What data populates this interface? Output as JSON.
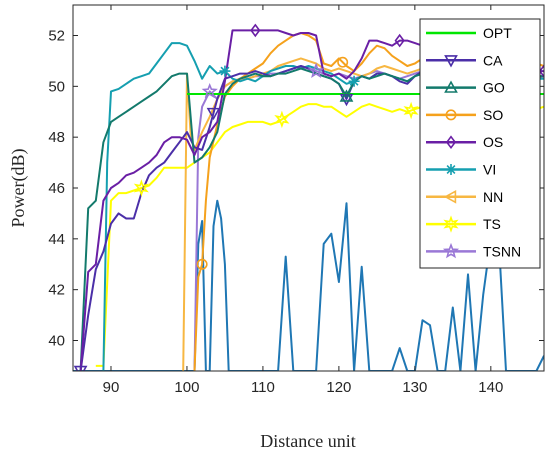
{
  "chart_data": {
    "type": "line",
    "title": "",
    "xlabel": "Distance unit",
    "ylabel": "Power(dB)",
    "xlim": [
      85,
      147
    ],
    "ylim": [
      38.8,
      53.2
    ],
    "xticks": [
      90,
      100,
      110,
      120,
      130,
      140
    ],
    "yticks": [
      40,
      42,
      44,
      46,
      48,
      50,
      52
    ],
    "grid": false,
    "legend_position": "top-right",
    "baseline": {
      "name": "",
      "color": "#1f77b4",
      "x": [
        85,
        101,
        101.5,
        102,
        102.5,
        103,
        103.5,
        104,
        104.5,
        105,
        105.5,
        106,
        107,
        108,
        109,
        110,
        111,
        112,
        113,
        114,
        115,
        116,
        117,
        118,
        119,
        120,
        121,
        122,
        123,
        124,
        125,
        126,
        127,
        128,
        129,
        130,
        131,
        132,
        133,
        134,
        135,
        136,
        137,
        138,
        139,
        140,
        141,
        142,
        143,
        144,
        145,
        146,
        147
      ],
      "y": [
        38.8,
        38.8,
        43.8,
        44.7,
        38.8,
        38.8,
        44.5,
        45.5,
        44.8,
        43.0,
        38.8,
        38.8,
        38.8,
        38.8,
        38.8,
        38.8,
        38.8,
        38.8,
        43.3,
        38.8,
        38.8,
        38.8,
        38.8,
        43.8,
        44.2,
        42.3,
        45.4,
        38.8,
        42.9,
        38.8,
        38.8,
        38.8,
        38.8,
        39.7,
        38.8,
        38.8,
        40.8,
        40.6,
        38.8,
        38.8,
        41.3,
        38.8,
        42.6,
        38.8,
        41.8,
        44.0,
        44.2,
        38.8,
        38.8,
        38.8,
        38.8,
        38.8,
        39.4
      ]
    },
    "series": [
      {
        "name": "OPT",
        "color": "#00e600",
        "marker": "none",
        "x": [
          100,
          147
        ],
        "y": [
          49.7,
          49.7
        ]
      },
      {
        "name": "CA",
        "color": "#4b2fa8",
        "marker": "triangle-down",
        "marker_x": [
          86,
          103.5,
          121
        ],
        "x": [
          86,
          87,
          88,
          89,
          90,
          91,
          92,
          93,
          94,
          95,
          96,
          97,
          98,
          99,
          100,
          101,
          102,
          103,
          104,
          105,
          106,
          107,
          108,
          109,
          110,
          111,
          112,
          113,
          114,
          115,
          116,
          117,
          118,
          119,
          120,
          121,
          122,
          123,
          124,
          125,
          126,
          127,
          128,
          129,
          130,
          131,
          132,
          133,
          134,
          135,
          136,
          137,
          138,
          139,
          140,
          141,
          142,
          143,
          144,
          145,
          146,
          147
        ],
        "y": [
          38.8,
          41.0,
          42.8,
          43.5,
          44.6,
          45.0,
          44.8,
          44.8,
          45.8,
          46.5,
          46.8,
          47.0,
          47.4,
          47.8,
          48.2,
          47.6,
          47.5,
          48.4,
          49.5,
          50.3,
          50.4,
          50.5,
          50.5,
          50.6,
          50.5,
          50.4,
          50.5,
          50.6,
          50.7,
          50.8,
          50.7,
          50.5,
          50.4,
          50.3,
          50.1,
          49.5,
          50.2,
          50.4,
          50.3,
          50.5,
          50.5,
          50.4,
          50.2,
          50.1,
          50.4,
          50.6,
          50.5,
          50.4,
          50.3,
          50.4,
          50.5,
          50.5,
          50.4,
          50.3,
          50.4,
          50.5,
          50.4,
          50.5,
          50.6,
          50.5,
          50.4,
          50.4
        ]
      },
      {
        "name": "GO",
        "color": "#137a6c",
        "marker": "triangle-up",
        "marker_x": [
          121
        ],
        "x": [
          86,
          87,
          88,
          89,
          90,
          91,
          92,
          93,
          94,
          95,
          96,
          97,
          98,
          99,
          100,
          101,
          102,
          103,
          104,
          105,
          106,
          107,
          108,
          109,
          110,
          111,
          112,
          113,
          114,
          115,
          116,
          117,
          118,
          119,
          120,
          121,
          122,
          123,
          124,
          125,
          126,
          127,
          128,
          129,
          130,
          131,
          132,
          133,
          134,
          135,
          136,
          137,
          138,
          139,
          140,
          141,
          142,
          143,
          144,
          145,
          146,
          147
        ],
        "y": [
          38.8,
          45.2,
          45.5,
          47.8,
          48.6,
          48.8,
          49.0,
          49.2,
          49.4,
          49.6,
          49.8,
          50.1,
          50.4,
          50.5,
          50.5,
          47.0,
          47.2,
          47.6,
          48.2,
          49.7,
          50.1,
          50.3,
          50.4,
          50.5,
          50.4,
          50.4,
          50.5,
          50.5,
          50.6,
          50.7,
          50.6,
          50.5,
          50.4,
          50.3,
          50.1,
          49.6,
          50.2,
          50.4,
          50.3,
          50.4,
          50.5,
          50.4,
          50.3,
          50.2,
          50.4,
          50.5,
          50.5,
          50.4,
          50.3,
          50.4,
          50.5,
          50.4,
          50.4,
          50.3,
          50.4,
          50.5,
          50.4,
          50.5,
          50.5,
          50.5,
          50.4,
          50.4
        ]
      },
      {
        "name": "SO",
        "color": "#f5a11c",
        "marker": "circle",
        "marker_x": [
          102,
          120.5,
          144
        ],
        "x": [
          101,
          101.5,
          102,
          102.5,
          103,
          104,
          105,
          106,
          107,
          108,
          109,
          110,
          111,
          112,
          113,
          114,
          115,
          116,
          117,
          118,
          119,
          120,
          121,
          122,
          123,
          124,
          125,
          126,
          127,
          128,
          129,
          130,
          131,
          132,
          133,
          134,
          135,
          136,
          137,
          138,
          139,
          140,
          141,
          142,
          143,
          144,
          145,
          146,
          147
        ],
        "y": [
          38.8,
          42.5,
          43.0,
          45.5,
          47.2,
          48.5,
          49.6,
          50.0,
          50.3,
          50.5,
          50.7,
          50.9,
          51.3,
          51.6,
          51.8,
          52.0,
          52.1,
          52.0,
          51.8,
          50.9,
          50.8,
          51.1,
          50.8,
          50.6,
          50.9,
          51.3,
          51.6,
          51.5,
          51.2,
          51.0,
          50.8,
          50.9,
          51.1,
          51.0,
          50.9,
          50.8,
          50.9,
          51.0,
          51.1,
          51.0,
          50.9,
          51.0,
          51.1,
          51.0,
          50.9,
          50.8,
          50.9,
          50.9,
          50.8
        ]
      },
      {
        "name": "OS",
        "color": "#6a1fa5",
        "marker": "diamond",
        "marker_x": [
          109,
          128,
          147
        ],
        "x": [
          86,
          87,
          88,
          89,
          90,
          91,
          92,
          93,
          94,
          95,
          96,
          97,
          98,
          99,
          100,
          101,
          102,
          103,
          104,
          105,
          106,
          107,
          108,
          109,
          110,
          111,
          112,
          113,
          114,
          115,
          116,
          117,
          118,
          119,
          120,
          121,
          122,
          123,
          124,
          125,
          126,
          127,
          128,
          129,
          130,
          131,
          132,
          133,
          134,
          135,
          136,
          137,
          138,
          139,
          140,
          141,
          142,
          143,
          144,
          145,
          146,
          147
        ],
        "y": [
          38.8,
          42.7,
          43.0,
          45.5,
          46.0,
          46.2,
          46.5,
          46.6,
          46.8,
          47.0,
          47.3,
          47.8,
          48.0,
          48.0,
          47.9,
          47.3,
          48.0,
          48.2,
          48.6,
          50.2,
          52.2,
          52.2,
          52.2,
          52.2,
          52.2,
          52.2,
          52.2,
          52.1,
          52.0,
          52.1,
          52.1,
          52.0,
          50.5,
          50.4,
          50.5,
          50.3,
          50.6,
          51.1,
          51.8,
          51.8,
          51.7,
          51.6,
          51.8,
          51.8,
          51.7,
          51.6,
          51.5,
          51.3,
          51.2,
          51.3,
          51.2,
          51.1,
          51.0,
          50.9,
          50.8,
          50.7,
          50.6,
          50.8,
          50.9,
          50.7,
          50.6,
          50.6
        ]
      },
      {
        "name": "VI",
        "color": "#159fb0",
        "marker": "asterisk",
        "marker_x": [
          105,
          122
        ],
        "x": [
          89,
          89.5,
          90,
          91,
          92,
          93,
          94,
          95,
          96,
          97,
          98,
          99,
          100,
          101,
          102,
          103,
          104,
          105,
          106,
          107,
          108,
          109,
          110,
          111,
          112,
          113,
          114,
          115,
          116,
          117,
          118,
          119,
          120,
          121,
          122,
          123,
          124,
          125,
          126,
          127,
          128,
          129,
          130,
          131,
          132,
          133,
          134,
          135,
          136,
          137,
          138,
          139,
          140,
          141,
          142,
          143,
          144,
          145,
          146,
          147
        ],
        "y": [
          38.8,
          47.0,
          49.8,
          49.9,
          50.1,
          50.3,
          50.4,
          50.5,
          50.9,
          51.3,
          51.7,
          51.7,
          51.6,
          51.0,
          50.3,
          50.8,
          50.5,
          50.6,
          50.3,
          50.2,
          50.3,
          50.2,
          50.4,
          50.6,
          50.7,
          50.8,
          50.8,
          50.7,
          50.8,
          50.7,
          50.6,
          50.5,
          50.3,
          50.1,
          50.2,
          50.4,
          50.3,
          50.5,
          50.5,
          50.4,
          50.3,
          50.2,
          50.4,
          50.5,
          50.6,
          50.5,
          50.4,
          50.3,
          50.4,
          50.5,
          50.4,
          50.3,
          50.4,
          50.4,
          50.3,
          50.4,
          50.5,
          50.4,
          50.3,
          50.3
        ]
      },
      {
        "name": "NN",
        "color": "#f7b742",
        "marker": "triangle-left",
        "marker_x": [],
        "x": [
          99.5,
          100,
          100.5,
          101,
          102,
          103,
          104,
          105,
          106,
          107,
          108,
          109,
          110,
          111,
          112,
          113,
          114,
          115,
          116,
          117,
          118,
          119,
          120,
          121,
          122,
          123,
          124,
          125,
          126,
          127,
          128,
          129,
          130,
          131,
          132,
          133,
          134,
          135,
          136,
          137,
          138,
          139,
          140,
          141,
          142,
          143,
          144,
          145,
          146,
          147
        ],
        "y": [
          38.8,
          50.5,
          48.0,
          47.5,
          48.2,
          48.8,
          49.5,
          50.0,
          50.2,
          50.3,
          50.3,
          50.4,
          50.5,
          50.6,
          50.8,
          50.9,
          51.0,
          51.1,
          51.0,
          50.9,
          50.7,
          50.6,
          50.7,
          50.6,
          50.5,
          50.4,
          50.5,
          50.7,
          50.8,
          50.7,
          50.6,
          50.5,
          50.6,
          50.7,
          50.6,
          50.5,
          50.4,
          50.5,
          50.6,
          50.5,
          50.4,
          50.5,
          50.6,
          50.5,
          50.4,
          50.3,
          50.4,
          50.5,
          50.4,
          50.4
        ]
      },
      {
        "name": "TS",
        "color": "#ffff00",
        "marker": "star6",
        "marker_x": [
          94,
          112.5,
          129.5
        ],
        "x": [
          88,
          89,
          90,
          91,
          92,
          93,
          94,
          95,
          96,
          97,
          98,
          99,
          100,
          101,
          102,
          103,
          104,
          105,
          106,
          107,
          108,
          109,
          110,
          111,
          112,
          113,
          114,
          115,
          116,
          117,
          118,
          119,
          120,
          121,
          122,
          123,
          124,
          125,
          126,
          127,
          128,
          129,
          130,
          131,
          132,
          133,
          134,
          135,
          136,
          137,
          138,
          139,
          140,
          141,
          142,
          143,
          144,
          145,
          146,
          147
        ],
        "y": [
          39.0,
          39.0,
          45.5,
          45.8,
          45.8,
          45.9,
          46.0,
          46.1,
          46.4,
          46.8,
          46.8,
          46.8,
          46.8,
          47.0,
          47.2,
          47.4,
          47.8,
          48.2,
          48.4,
          48.5,
          48.6,
          48.6,
          48.6,
          48.5,
          48.6,
          48.8,
          49.0,
          49.2,
          49.3,
          49.3,
          49.2,
          49.2,
          49.0,
          48.8,
          49.0,
          49.2,
          49.3,
          49.2,
          49.1,
          49.0,
          49.1,
          49.0,
          49.1,
          49.2,
          49.1,
          49.0,
          49.1,
          49.2,
          49.3,
          49.2,
          49.1,
          49.0,
          49.0,
          49.1,
          49.0,
          48.9,
          48.9,
          49.0,
          49.1,
          49.2
        ]
      },
      {
        "name": "TSNN",
        "color": "#9a78d6",
        "marker": "star5",
        "marker_x": [
          103,
          117
        ],
        "x": [
          101,
          101.5,
          102,
          103,
          104,
          105,
          106,
          107,
          108,
          109,
          110,
          111,
          112,
          113,
          114,
          115,
          116,
          117,
          118,
          119,
          120,
          121,
          122,
          123,
          124,
          125,
          126,
          127,
          128,
          129,
          130,
          131,
          132,
          133,
          134,
          135,
          136,
          137,
          138,
          139,
          140,
          141,
          142,
          143,
          144,
          145,
          146,
          147
        ],
        "y": [
          38.8,
          48.0,
          49.2,
          49.8,
          49.5,
          50.0,
          50.2,
          50.3,
          50.3,
          50.4,
          50.4,
          50.5,
          50.5,
          50.6,
          50.7,
          50.8,
          50.7,
          50.6,
          50.5,
          50.4,
          50.5,
          50.4,
          50.3,
          50.4,
          50.5,
          50.6,
          50.5,
          50.4,
          50.3,
          50.4,
          50.5,
          50.6,
          50.5,
          50.4,
          50.3,
          50.4,
          50.5,
          50.4,
          50.3,
          50.4,
          50.5,
          50.4,
          50.3,
          50.4,
          50.5,
          50.4,
          50.3,
          50.4
        ]
      }
    ]
  }
}
